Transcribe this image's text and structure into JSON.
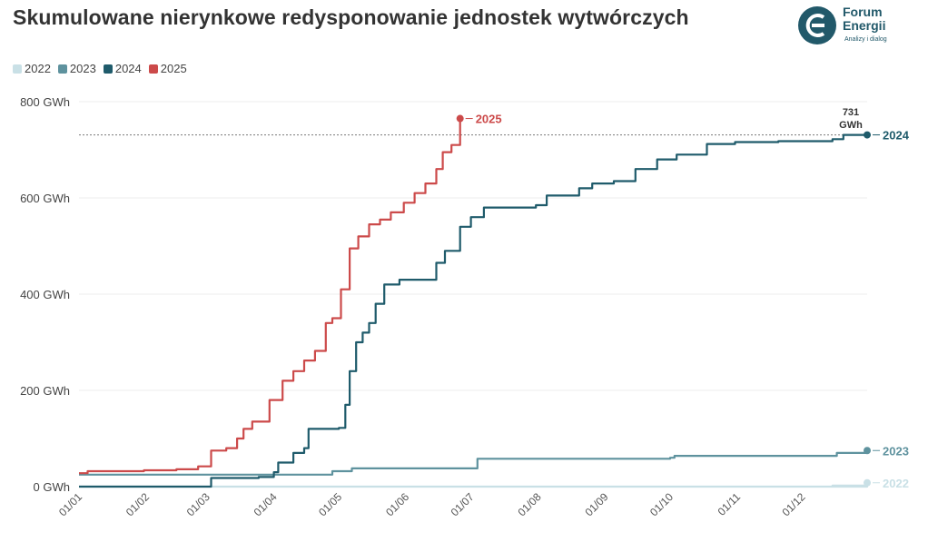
{
  "title": "Skumulowane nierynkowe redysponowanie jednostek wytwórczych",
  "brand": {
    "name_line1": "Forum",
    "name_line2": "Energii",
    "tagline": "Analizy i dialog",
    "color": "#22596a"
  },
  "chart_data": {
    "type": "line",
    "title": "Skumulowane nierynkowe redysponowanie jednostek wytwórczych",
    "xlabel": "",
    "ylabel": "",
    "ylim": [
      0,
      800
    ],
    "xlim": [
      "01/01",
      "31/12"
    ],
    "yticks": [
      "0 GWh",
      "200 GWh",
      "400 GWh",
      "600 GWh",
      "800 GWh"
    ],
    "ytick_values": [
      0,
      200,
      400,
      600,
      800
    ],
    "xticks": [
      "01/01",
      "01/02",
      "01/03",
      "01/04",
      "01/05",
      "01/06",
      "01/07",
      "01/08",
      "01/09",
      "01/10",
      "01/11",
      "01/12"
    ],
    "grid": "horizontal",
    "legend_placement": "top-left",
    "reference_line": {
      "value": 731,
      "label": "731\nGWh",
      "style": "dotted"
    },
    "series": [
      {
        "name": "2022",
        "color": "#c9e0e6",
        "end_label": "2022",
        "points": [
          [
            "01/01",
            0
          ],
          [
            "31/12",
            0
          ],
          [
            "15/12",
            2
          ],
          [
            "31/12",
            8
          ]
        ]
      },
      {
        "name": "2023",
        "color": "#5e929e",
        "end_label": "2023",
        "points": [
          [
            "01/01",
            25
          ],
          [
            "26/04",
            25
          ],
          [
            "28/04",
            32
          ],
          [
            "05/05",
            32
          ],
          [
            "07/05",
            38
          ],
          [
            "02/07",
            38
          ],
          [
            "04/07",
            58
          ],
          [
            "01/10",
            60
          ],
          [
            "03/10",
            64
          ],
          [
            "15/12",
            64
          ],
          [
            "17/12",
            70
          ],
          [
            "31/12",
            75
          ]
        ]
      },
      {
        "name": "2024",
        "color": "#1f5b6b",
        "end_label": "2024",
        "points": [
          [
            "01/01",
            0
          ],
          [
            "02/03",
            0
          ],
          [
            "03/03",
            18
          ],
          [
            "25/03",
            20
          ],
          [
            "01/04",
            30
          ],
          [
            "03/04",
            50
          ],
          [
            "08/04",
            50
          ],
          [
            "10/04",
            70
          ],
          [
            "15/04",
            80
          ],
          [
            "17/04",
            120
          ],
          [
            "01/05",
            122
          ],
          [
            "04/05",
            170
          ],
          [
            "06/05",
            240
          ],
          [
            "09/05",
            300
          ],
          [
            "12/05",
            320
          ],
          [
            "15/05",
            340
          ],
          [
            "18/05",
            380
          ],
          [
            "22/05",
            420
          ],
          [
            "29/05",
            430
          ],
          [
            "12/06",
            430
          ],
          [
            "15/06",
            465
          ],
          [
            "19/06",
            490
          ],
          [
            "26/06",
            540
          ],
          [
            "01/07",
            560
          ],
          [
            "07/07",
            580
          ],
          [
            "31/07",
            585
          ],
          [
            "05/08",
            605
          ],
          [
            "20/08",
            620
          ],
          [
            "26/08",
            630
          ],
          [
            "05/09",
            635
          ],
          [
            "15/09",
            660
          ],
          [
            "25/09",
            680
          ],
          [
            "04/10",
            690
          ],
          [
            "18/10",
            712
          ],
          [
            "31/10",
            716
          ],
          [
            "20/11",
            718
          ],
          [
            "15/12",
            722
          ],
          [
            "20/12",
            731
          ],
          [
            "31/12",
            731
          ]
        ]
      },
      {
        "name": "2025",
        "color": "#cc4a4a",
        "end_label": "2025",
        "points": [
          [
            "01/01",
            28
          ],
          [
            "05/01",
            32
          ],
          [
            "31/01",
            34
          ],
          [
            "15/02",
            36
          ],
          [
            "25/02",
            42
          ],
          [
            "03/03",
            75
          ],
          [
            "10/03",
            80
          ],
          [
            "15/03",
            100
          ],
          [
            "18/03",
            120
          ],
          [
            "22/03",
            135
          ],
          [
            "30/03",
            180
          ],
          [
            "05/04",
            220
          ],
          [
            "10/04",
            240
          ],
          [
            "15/04",
            262
          ],
          [
            "20/04",
            282
          ],
          [
            "25/04",
            340
          ],
          [
            "28/04",
            350
          ],
          [
            "02/05",
            410
          ],
          [
            "06/05",
            495
          ],
          [
            "10/05",
            520
          ],
          [
            "15/05",
            545
          ],
          [
            "20/05",
            555
          ],
          [
            "25/05",
            570
          ],
          [
            "31/05",
            590
          ],
          [
            "05/06",
            610
          ],
          [
            "10/06",
            630
          ],
          [
            "15/06",
            660
          ],
          [
            "18/06",
            695
          ],
          [
            "22/06",
            710
          ],
          [
            "26/06",
            765
          ]
        ]
      }
    ]
  }
}
